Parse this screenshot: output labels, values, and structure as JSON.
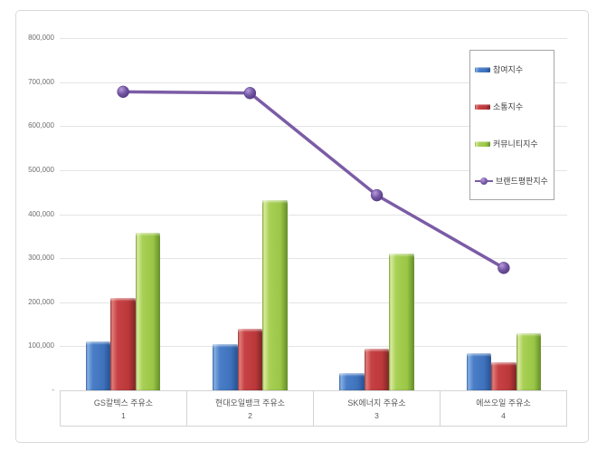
{
  "chart_data": {
    "type": "bar",
    "title": "",
    "categories": [
      "GS칼텍스 주유소",
      "현대오일뱅크 주유소",
      "SK에너지 주유소",
      "에쓰오일 주유소"
    ],
    "category_numbers": [
      "1",
      "2",
      "3",
      "4"
    ],
    "series": [
      {
        "name": "참여지수",
        "type": "bar",
        "color": "#3f72bc",
        "values": [
          111000,
          104000,
          39000,
          85000
        ]
      },
      {
        "name": "소통지수",
        "type": "bar",
        "color": "#bb383a",
        "values": [
          210000,
          139000,
          94000,
          63000
        ]
      },
      {
        "name": "커뮤니티지수",
        "type": "bar",
        "color": "#9ac646",
        "values": [
          357000,
          432000,
          310000,
          130000
        ]
      },
      {
        "name": "브랜드평판지수",
        "type": "line",
        "color": "#7b5ca6",
        "values": [
          678000,
          675000,
          443000,
          278000
        ]
      }
    ],
    "y_axis": {
      "min": 0,
      "max": 800000,
      "step": 100000,
      "tick_labels": [
        "800,000",
        "700,000",
        "600,000",
        "500,000",
        "400,000",
        "300,000",
        "200,000",
        "100,000",
        "-"
      ]
    },
    "grid": true,
    "legend_position": "inside-top-right",
    "colors": {
      "gridline": "#e4e4e4",
      "axis_text": "#6e6e6e",
      "frame_border": "#d9d9d9"
    }
  }
}
